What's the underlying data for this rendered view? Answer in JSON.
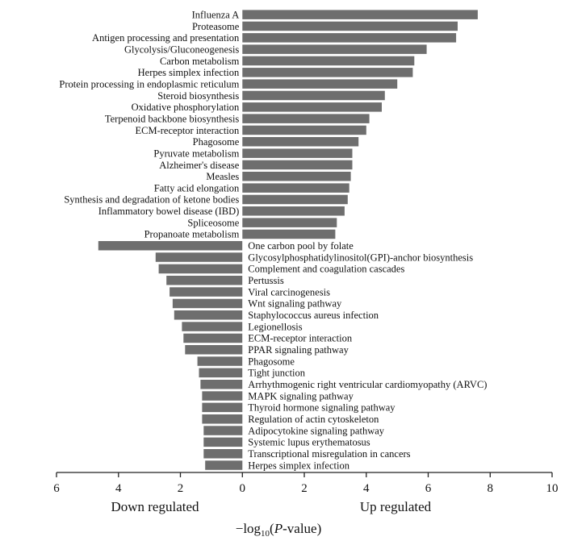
{
  "chart_data": {
    "type": "bar",
    "orientation": "horizontal",
    "xlim": [
      -6,
      10
    ],
    "x_ticks": [
      {
        "value": -6,
        "label": "6"
      },
      {
        "value": -4,
        "label": "4"
      },
      {
        "value": -2,
        "label": "2"
      },
      {
        "value": 0,
        "label": "0"
      },
      {
        "value": 2,
        "label": "2"
      },
      {
        "value": 4,
        "label": "4"
      },
      {
        "value": 6,
        "label": "6"
      },
      {
        "value": 8,
        "label": "8"
      },
      {
        "value": 10,
        "label": "10"
      }
    ],
    "left_annotation": "Down regulated",
    "right_annotation": "Up regulated",
    "xlabel": {
      "prefix": "−log",
      "sub": "10",
      "open": "(",
      "italic": "P",
      "rest": "-value)"
    },
    "series": [
      {
        "name": "Up regulated",
        "categories": [
          "Influenza A",
          "Proteasome",
          "Antigen processing and presentation",
          "Glycolysis/Gluconeogenesis",
          "Carbon metabolism",
          "Herpes simplex infection",
          "Protein processing in endoplasmic reticulum",
          "Steroid biosynthesis",
          "Oxidative phosphorylation",
          "Terpenoid backbone biosynthesis",
          "ECM-receptor interaction",
          "Phagosome",
          "Pyruvate metabolism",
          "Alzheimer's disease",
          "Measles",
          "Fatty acid elongation",
          "Synthesis and degradation of ketone bodies",
          "Inflammatory bowel disease (IBD)",
          "Spliceosome",
          "Propanoate metabolism"
        ],
        "values": [
          7.6,
          6.95,
          6.9,
          5.95,
          5.55,
          5.5,
          5.0,
          4.6,
          4.5,
          4.1,
          4.0,
          3.75,
          3.55,
          3.55,
          3.5,
          3.45,
          3.4,
          3.3,
          3.05,
          3.0
        ]
      },
      {
        "name": "Down regulated",
        "categories": [
          "One carbon pool by folate",
          "Glycosylphosphatidylinositol(GPI)-anchor biosynthesis",
          "Complement and coagulation cascades",
          "Pertussis",
          "Viral carcinogenesis",
          "Wnt signaling pathway",
          "Staphylococcus aureus infection",
          "Legionellosis",
          "ECM-receptor interaction",
          "PPAR signaling pathway",
          "Phagosome",
          "Tight junction",
          "Arrhythmogenic right ventricular cardiomyopathy (ARVC)",
          "MAPK signaling pathway",
          "Thyroid hormone signaling pathway",
          "Regulation of actin cytoskeleton",
          "Adipocytokine signaling pathway",
          "Systemic lupus erythematosus",
          "Transcriptional misregulation in cancers",
          "Herpes simplex infection"
        ],
        "values": [
          -4.65,
          -2.8,
          -2.7,
          -2.45,
          -2.35,
          -2.25,
          -2.2,
          -1.95,
          -1.9,
          -1.85,
          -1.45,
          -1.4,
          -1.35,
          -1.3,
          -1.3,
          -1.3,
          -1.25,
          -1.25,
          -1.25,
          -1.2
        ]
      }
    ]
  }
}
